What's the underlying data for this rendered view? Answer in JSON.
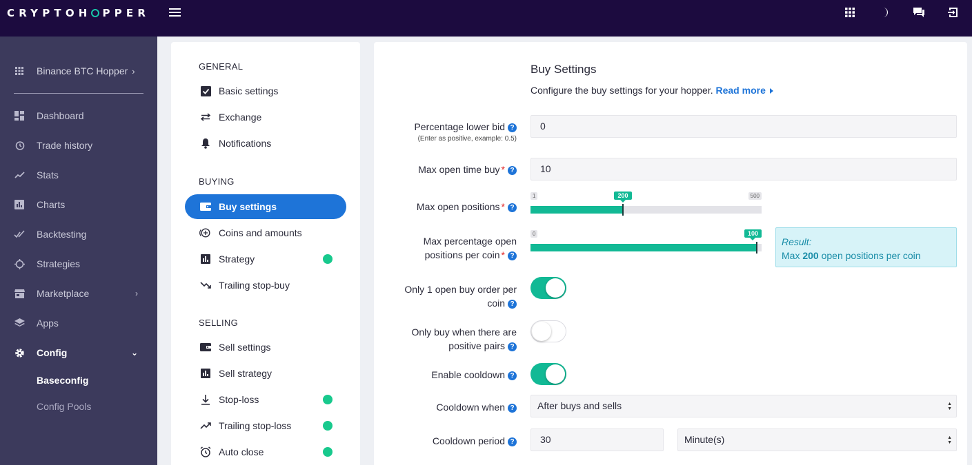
{
  "brand": {
    "logo_left": "CRYPTOH",
    "logo_right": "PPER"
  },
  "sidebar": {
    "hopper": "Binance BTC Hopper",
    "items": [
      {
        "label": "Dashboard",
        "icon": "dashboard-icon"
      },
      {
        "label": "Trade history",
        "icon": "history-icon"
      },
      {
        "label": "Stats",
        "icon": "stats-icon"
      },
      {
        "label": "Charts",
        "icon": "chart-icon"
      },
      {
        "label": "Backtesting",
        "icon": "backtest-icon"
      },
      {
        "label": "Strategies",
        "icon": "strategies-icon"
      },
      {
        "label": "Marketplace",
        "icon": "store-icon"
      },
      {
        "label": "Apps",
        "icon": "layers-icon"
      },
      {
        "label": "Config",
        "icon": "gear-icon"
      }
    ],
    "config_sub": [
      "Baseconfig",
      "Config Pools"
    ]
  },
  "menu": {
    "general_title": "GENERAL",
    "general": [
      "Basic settings",
      "Exchange",
      "Notifications"
    ],
    "buying_title": "BUYING",
    "buying": [
      "Buy settings",
      "Coins and amounts",
      "Strategy",
      "Trailing stop-buy"
    ],
    "selling_title": "SELLING",
    "selling": [
      "Sell settings",
      "Sell strategy",
      "Stop-loss",
      "Trailing stop-loss",
      "Auto close"
    ]
  },
  "content": {
    "title": "Buy Settings",
    "desc": "Configure the buy settings for your hopper.",
    "read_more": "Read more",
    "fields": {
      "pct_lower_bid_label": "Percentage lower bid",
      "pct_lower_bid_sub": "(Enter as positive, example: 0.5)",
      "pct_lower_bid_value": "0",
      "max_open_time_label": "Max open time buy",
      "max_open_time_value": "10",
      "max_open_positions_label": "Max open positions",
      "max_open_positions": {
        "min": "1",
        "max": "500",
        "value": "200",
        "fraction": 0.4
      },
      "max_pct_label_1": "Max percentage open",
      "max_pct_label_2": "positions per coin",
      "max_pct": {
        "min": "0",
        "max": "100",
        "value": "100",
        "fraction": 0.98
      },
      "result_title": "Result:",
      "result_pre": "Max",
      "result_value": "200",
      "result_post": "open positions per coin",
      "only1_label_1": "Only 1 open buy order per",
      "only1_label_2": "coin",
      "positive_label_1": "Only buy when there are",
      "positive_label_2": "positive pairs",
      "cooldown_label": "Enable cooldown",
      "cooldown_when_label": "Cooldown when",
      "cooldown_when_value": "After buys and sells",
      "cooldown_period_label": "Cooldown period",
      "cooldown_period_value": "30",
      "cooldown_period_unit": "Minute(s)"
    }
  },
  "colors": {
    "topbar": "#1c0b3f",
    "sidebar": "#3c3a5c",
    "accent": "#1e74d8",
    "teal": "#12b995"
  }
}
